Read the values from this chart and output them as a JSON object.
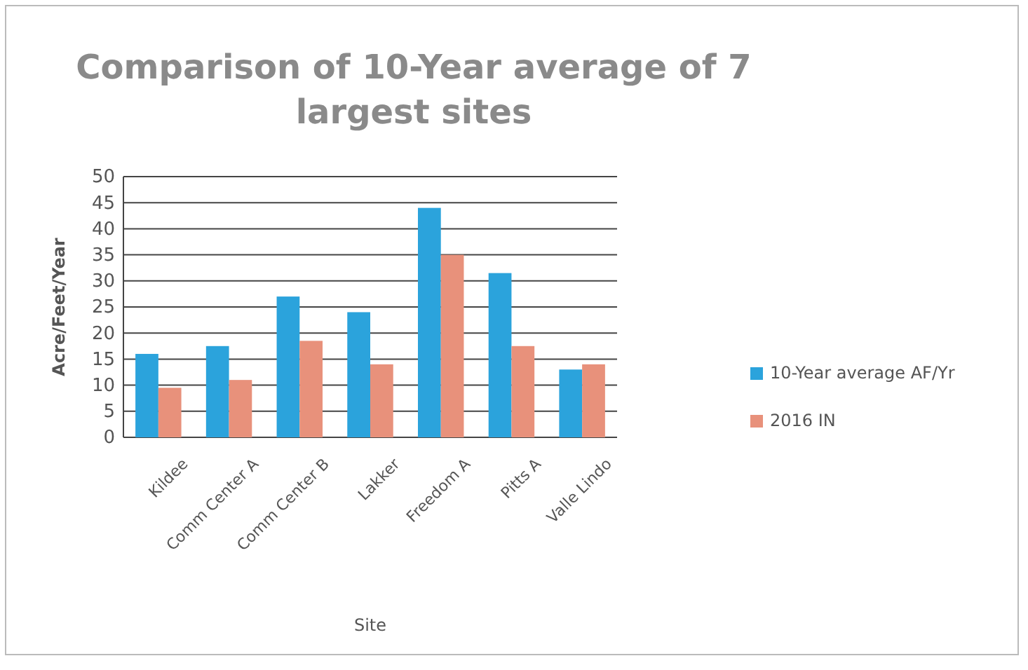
{
  "chart_data": {
    "type": "bar",
    "title": "Comparison of 10-Year average of 7 largest sites",
    "xlabel": "Site",
    "ylabel": "Acre/Feet/Year",
    "categories": [
      "Kildee",
      "Comm Center A",
      "Comm Center B",
      "Lakker",
      "Freedom A",
      "Pitts A",
      "Valle Lindo"
    ],
    "series": [
      {
        "name": "10-Year average AF/Yr",
        "color": "#2ba3dc",
        "values": [
          16,
          17.5,
          27,
          24,
          44,
          31.5,
          13
        ]
      },
      {
        "name": "2016 IN",
        "color": "#e8917b",
        "values": [
          9.5,
          11,
          18.5,
          14,
          35,
          17.5,
          14
        ]
      }
    ],
    "ylim": [
      0,
      50
    ],
    "yticks": [
      0,
      5,
      10,
      15,
      20,
      25,
      30,
      35,
      40,
      45,
      50
    ],
    "grid": "y",
    "legend": "right"
  }
}
